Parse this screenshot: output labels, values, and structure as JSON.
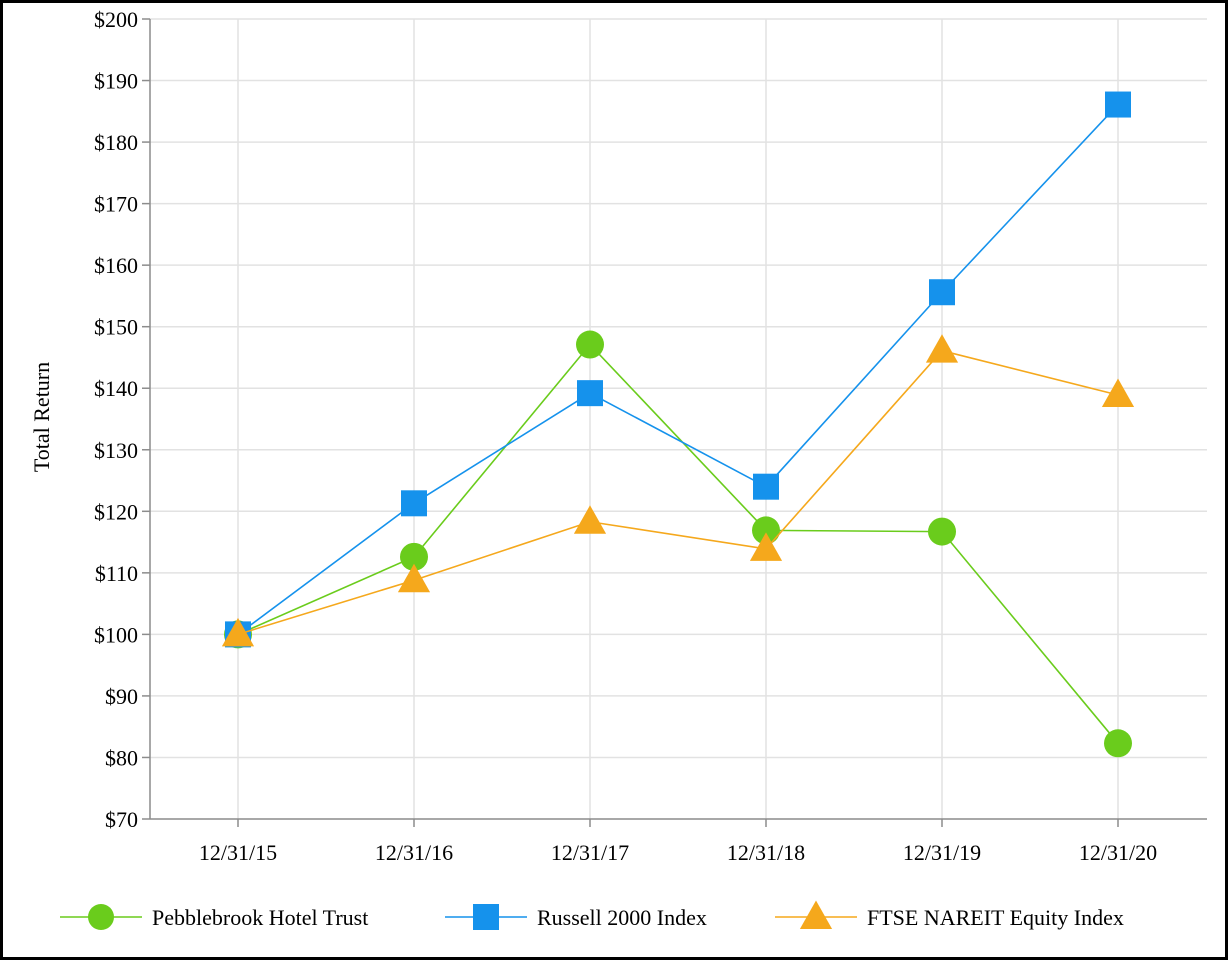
{
  "chart_data": {
    "type": "line",
    "ylabel": "Total Return",
    "xlabel": "",
    "categories": [
      "12/31/15",
      "12/31/16",
      "12/31/17",
      "12/31/18",
      "12/31/19",
      "12/31/20"
    ],
    "ylim": [
      70,
      200
    ],
    "ytick_step": 10,
    "ytick_labels": [
      "$70",
      "$80",
      "$90",
      "$100",
      "$110",
      "$120",
      "$130",
      "$140",
      "$150",
      "$160",
      "$170",
      "$180",
      "$190",
      "$200"
    ],
    "grid": true,
    "legend_position": "bottom",
    "series": [
      {
        "name": "Pebblebrook Hotel Trust",
        "marker": "circle",
        "color": "#6acc1c",
        "values": [
          100,
          112.6,
          147.1,
          116.9,
          116.7,
          82.3
        ]
      },
      {
        "name": "Russell 2000 Index",
        "marker": "square",
        "color": "#1592ec",
        "values": [
          100,
          121.3,
          139.2,
          124.0,
          155.6,
          186.1
        ]
      },
      {
        "name": "FTSE NAREIT Equity Index",
        "marker": "triangle",
        "color": "#f5a81c",
        "values": [
          100,
          108.8,
          118.3,
          113.9,
          146.1,
          138.9
        ]
      }
    ]
  }
}
